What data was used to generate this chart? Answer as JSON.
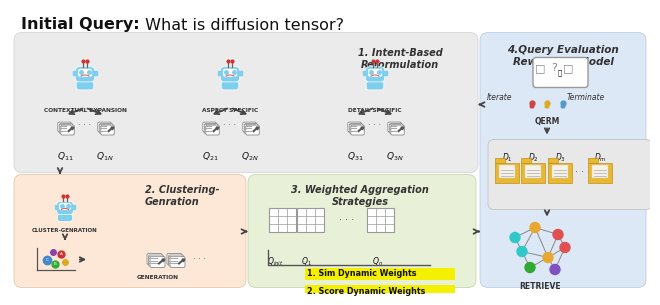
{
  "title_bold": "Initial Query:",
  "title_normal": " What is diffusion tensor?",
  "title_fontsize": 11.5,
  "bg_color": "#ffffff",
  "box1_color": "#ebebeb",
  "box1_label": "1. Intent-Based\nReformulation",
  "box2_color": "#fde8d8",
  "box2_label": "2. Clustering-\nGenration",
  "box3_color": "#e8f0d8",
  "box3_label": "3. Weighted Aggregation\nStrategies",
  "box4_color": "#dce8f5",
  "box4_label": "4.Query Evaluation\nRewarding Model",
  "robot_color": "#7dcfed",
  "robot_labels": [
    "CONTEXTUAL EXPANSION",
    "ASPECT SPECIFIC",
    "DETAIL SPECIFIC"
  ],
  "sim_label": "1. Sim Dynamic Weights",
  "score_label": "2. Score Dynamic Weights",
  "highlight_color": "#f5f000",
  "retrieve_label": "RETRIEVE",
  "qerm_label": "QERM",
  "iterate_label": "Iterate",
  "terminate_label": "Terminate",
  "cluster_label": "CLUSTER-GENRATION",
  "generation_label": "GENERATION",
  "arrow_color": "#444444",
  "node_colors": [
    "#30c0c0",
    "#e8a830",
    "#e05050",
    "#30c0c0",
    "#e8a830",
    "#e05050",
    "#30a030",
    "#8050c0"
  ]
}
